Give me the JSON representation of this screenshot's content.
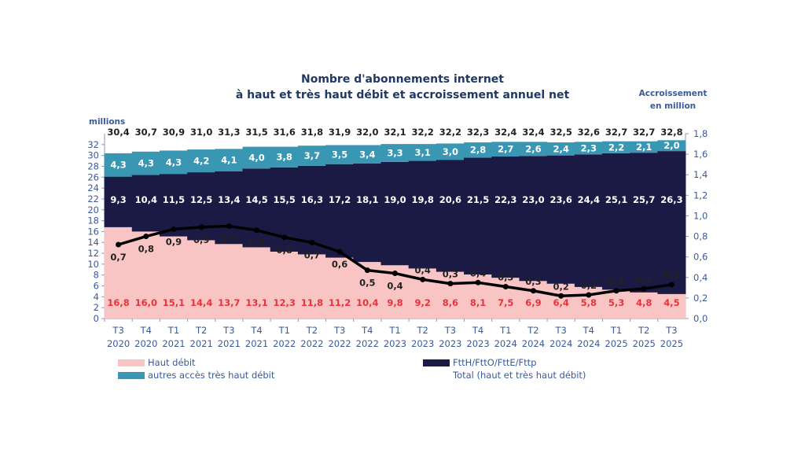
{
  "chart_data": {
    "type": "bar",
    "stacked": true,
    "title": "Nombre d'abonnements internet à haut et très haut débit et accroissement annuel net",
    "title_lines": [
      "Nombre d'abonnements internet",
      "à haut et très haut débit et accroissement annuel net"
    ],
    "ylabel": "millions",
    "y2label_lines": [
      "Accroissement",
      "en million"
    ],
    "ylim": [
      0,
      34
    ],
    "yticks": [
      0,
      2,
      4,
      6,
      8,
      10,
      12,
      14,
      16,
      18,
      20,
      22,
      24,
      26,
      28,
      30,
      32
    ],
    "y2lim": [
      0,
      1.8
    ],
    "y2ticks": [
      "0,0",
      "0,2",
      "0,4",
      "0,6",
      "0,8",
      "1,0",
      "1,2",
      "1,4",
      "1,6",
      "1,8"
    ],
    "categories": [
      [
        "T3",
        "2020"
      ],
      [
        "T4",
        "2020"
      ],
      [
        "T1",
        "2021"
      ],
      [
        "T2",
        "2021"
      ],
      [
        "T3",
        "2021"
      ],
      [
        "T4",
        "2021"
      ],
      [
        "T1",
        "2022"
      ],
      [
        "T2",
        "2022"
      ],
      [
        "T3",
        "2022"
      ],
      [
        "T4",
        "2022"
      ],
      [
        "T1",
        "2023"
      ],
      [
        "T2",
        "2023"
      ],
      [
        "T3",
        "2023"
      ],
      [
        "T4",
        "2023"
      ],
      [
        "T1",
        "2024"
      ],
      [
        "T2",
        "2024"
      ],
      [
        "T3",
        "2024"
      ],
      [
        "T4",
        "2024"
      ],
      [
        "T1",
        "2025"
      ],
      [
        "T2",
        "2025"
      ],
      [
        "T3",
        "2025"
      ]
    ],
    "series": [
      {
        "name": "Haut débit",
        "color": "#f8c4c4",
        "label_color": "#e8333a",
        "values": [
          16.8,
          16.0,
          15.1,
          14.4,
          13.7,
          13.1,
          12.3,
          11.8,
          11.2,
          10.4,
          9.8,
          9.2,
          8.6,
          8.1,
          7.5,
          6.9,
          6.4,
          5.8,
          5.3,
          4.8,
          4.5
        ]
      },
      {
        "name": "FttH/FttO/FttE/Fttp",
        "color": "#1b1a45",
        "label_color": "#ffffff",
        "values": [
          9.3,
          10.4,
          11.5,
          12.5,
          13.4,
          14.5,
          15.5,
          16.3,
          17.2,
          18.1,
          19.0,
          19.8,
          20.6,
          21.5,
          22.3,
          23.0,
          23.6,
          24.4,
          25.1,
          25.7,
          26.3
        ]
      },
      {
        "name": "autres accès très haut débit",
        "color": "#3a97b3",
        "label_color": "#ffffff",
        "values": [
          4.3,
          4.3,
          4.3,
          4.2,
          4.1,
          4.0,
          3.8,
          3.7,
          3.5,
          3.4,
          3.3,
          3.1,
          3.0,
          2.8,
          2.7,
          2.6,
          2.4,
          2.3,
          2.2,
          2.1,
          2.0
        ]
      }
    ],
    "totals": {
      "name": "Total (haut et très haut débit)",
      "values": [
        "30,4",
        "30,7",
        "30,9",
        "31,0",
        "31,3",
        "31,5",
        "31,6",
        "31,8",
        "31,9",
        "32,0",
        "32,1",
        "32,2",
        "32,2",
        "32,3",
        "32,4",
        "32,4",
        "32,5",
        "32,6",
        "32,7",
        "32,7",
        "32,8"
      ]
    },
    "line": {
      "axis": "right",
      "color": "#000000",
      "values": [
        0.72,
        0.8,
        0.87,
        0.89,
        0.9,
        0.86,
        0.79,
        0.74,
        0.65,
        0.47,
        0.44,
        0.38,
        0.34,
        0.35,
        0.31,
        0.27,
        0.22,
        0.23,
        0.27,
        0.29,
        0.33
      ],
      "labels": [
        "0,7",
        "0,8",
        "0,9",
        "0,9",
        "0,9",
        "0,9",
        "0,8",
        "0,7",
        "0,6",
        "0,5",
        "0,4",
        "0,4",
        "0,3",
        "0,4",
        "0,3",
        "0,3",
        "0,2",
        "0,2",
        "0,3",
        "0,3",
        "0,3"
      ]
    },
    "legend": [
      {
        "label": "Haut débit",
        "color": "#f8c4c4"
      },
      {
        "label": "autres accès très haut débit",
        "color": "#3a97b3"
      },
      {
        "label": "FttH/FttO/FttE/Fttp",
        "color": "#1b1a45"
      },
      {
        "label": "Total (haut et très haut débit)",
        "color": ""
      }
    ]
  }
}
